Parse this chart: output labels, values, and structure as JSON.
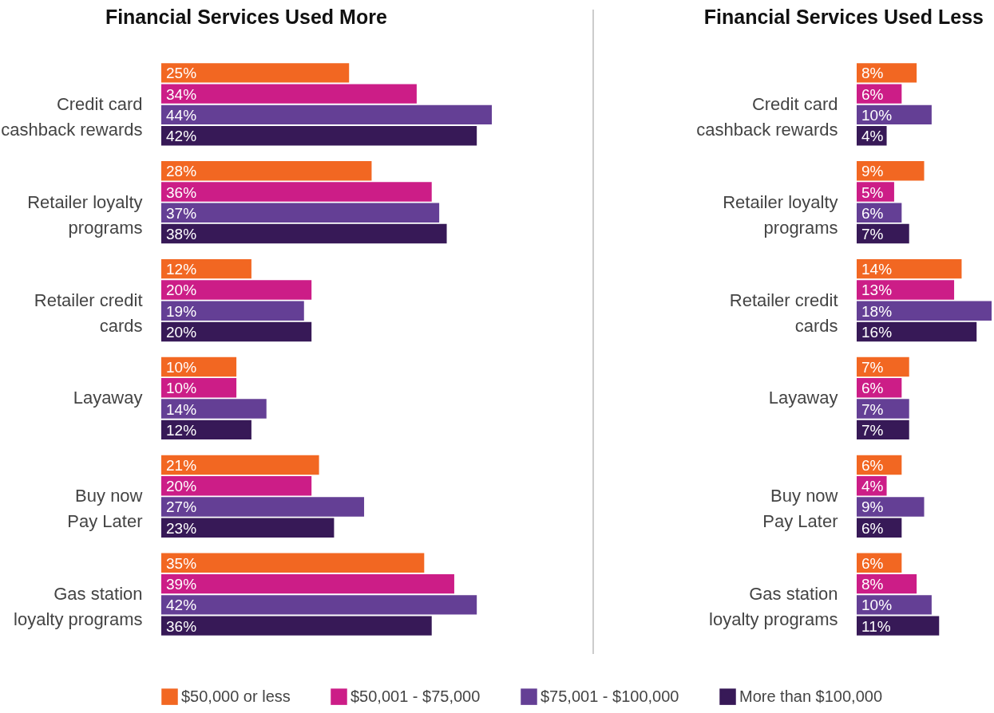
{
  "chart_data": [
    {
      "type": "bar",
      "orientation": "horizontal",
      "title": "Financial Services Used More",
      "legend": "bottom",
      "tick_labels": "y",
      "categories": [
        "Credit card\ncashback rewards",
        "Retailer loyalty\nprograms",
        "Retailer credit\ncards",
        "Layaway",
        "Buy now\nPay Later",
        "Gas station\nloyalty programs"
      ],
      "series": [
        {
          "name": "$50,000 or less",
          "color": "#f26722",
          "values": [
            25,
            28,
            12,
            10,
            21,
            35
          ],
          "value_labels": [
            "25%",
            "28%",
            "12%",
            "10%",
            "21%",
            "35%"
          ]
        },
        {
          "name": "$50,001 - $75,000",
          "color": "#cc1d87",
          "values": [
            34,
            36,
            20,
            10,
            20,
            39
          ],
          "value_labels": [
            "34%",
            "36%",
            "20%",
            "10%",
            "20%",
            "39%"
          ]
        },
        {
          "name": "$75,001 - $100,000",
          "color": "#643f95",
          "values": [
            44,
            37,
            19,
            14,
            27,
            42
          ],
          "value_labels": [
            "44%",
            "37%",
            "19%",
            "14%",
            "27%",
            "42%"
          ]
        },
        {
          "name": "More than $100,000",
          "color": "#371957",
          "values": [
            42,
            38,
            20,
            12,
            23,
            36
          ],
          "value_labels": [
            "42%",
            "38%",
            "20%",
            "12%",
            "23%",
            "36%"
          ]
        }
      ]
    },
    {
      "type": "bar",
      "orientation": "horizontal",
      "title": "Financial Services Used Less",
      "tick_labels": "y",
      "categories": [
        "Credit card\ncashback rewards",
        "Retailer loyalty\nprograms",
        "Retailer credit\ncards",
        "Layaway",
        "Buy now\nPay Later",
        "Gas station\nloyalty programs"
      ],
      "series": [
        {
          "color": "#f26722",
          "values": [
            8,
            9,
            14,
            7,
            6,
            6
          ],
          "value_labels": [
            "8%",
            "9%",
            "14%",
            "7%",
            "6%",
            "6%"
          ]
        },
        {
          "color": "#cc1d87",
          "values": [
            6,
            5,
            13,
            6,
            4,
            8
          ],
          "value_labels": [
            "6%",
            "5%",
            "13%",
            "6%",
            "4%",
            "8%"
          ]
        },
        {
          "color": "#643f95",
          "values": [
            10,
            6,
            18,
            7,
            9,
            10
          ],
          "value_labels": [
            "10%",
            "6%",
            "18%",
            "7%",
            "9%",
            "10%"
          ]
        },
        {
          "color": "#371957",
          "values": [
            4,
            7,
            16,
            7,
            6,
            11
          ],
          "value_labels": [
            "4%",
            "7%",
            "16%",
            "7%",
            "6%",
            "11%"
          ]
        }
      ]
    }
  ]
}
